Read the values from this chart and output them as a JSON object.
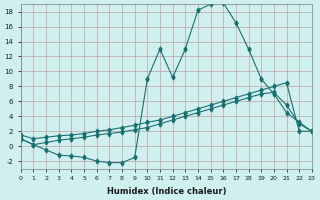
{
  "xlabel": "Humidex (Indice chaleur)",
  "background_color": "#d0f0f0",
  "grid_color": "#c0a0a0",
  "line_color": "#1a7070",
  "xlim": [
    0,
    23
  ],
  "ylim": [
    -3,
    19
  ],
  "x_ticks": [
    0,
    1,
    2,
    3,
    4,
    5,
    6,
    7,
    8,
    9,
    10,
    11,
    12,
    13,
    14,
    15,
    16,
    17,
    18,
    19,
    20,
    21,
    22,
    23
  ],
  "y_ticks": [
    -2,
    0,
    2,
    4,
    6,
    8,
    10,
    12,
    14,
    16,
    18
  ],
  "series1_x": [
    0,
    1,
    2,
    3,
    4,
    5,
    6,
    7,
    8,
    9,
    10,
    11,
    12,
    13,
    14,
    15,
    16,
    17,
    18,
    19,
    20,
    21,
    22,
    23
  ],
  "series1_y": [
    1.0,
    0.2,
    -0.5,
    -1.2,
    -1.3,
    -1.5,
    -2.0,
    -2.2,
    -2.2,
    -1.5,
    9.0,
    13.0,
    9.2,
    13.0,
    18.2,
    19.0,
    19.2,
    16.5,
    13.0,
    9.0,
    7.0,
    4.5,
    3.2,
    2.0
  ],
  "series2_x": [
    0,
    1,
    2,
    3,
    4,
    5,
    6,
    7,
    8,
    9,
    10,
    11,
    12,
    13,
    14,
    15,
    16,
    17,
    18,
    19,
    20,
    21,
    22,
    23
  ],
  "series2_y": [
    1.0,
    0.2,
    0.5,
    0.8,
    1.0,
    1.2,
    1.5,
    1.7,
    1.9,
    2.2,
    2.5,
    3.0,
    3.5,
    4.0,
    4.5,
    5.0,
    5.5,
    6.0,
    6.5,
    7.0,
    7.2,
    5.5,
    3.0,
    2.0
  ],
  "series3_x": [
    0,
    1,
    2,
    3,
    4,
    5,
    6,
    7,
    8,
    9,
    10,
    11,
    12,
    13,
    14,
    15,
    16,
    17,
    18,
    19,
    20,
    21,
    22,
    23
  ],
  "series3_y": [
    1.5,
    1.0,
    1.2,
    1.4,
    1.5,
    1.7,
    2.0,
    2.2,
    2.5,
    2.8,
    3.2,
    3.5,
    4.0,
    4.5,
    5.0,
    5.5,
    6.0,
    6.5,
    7.0,
    7.5,
    8.0,
    8.5,
    2.0,
    2.0
  ]
}
